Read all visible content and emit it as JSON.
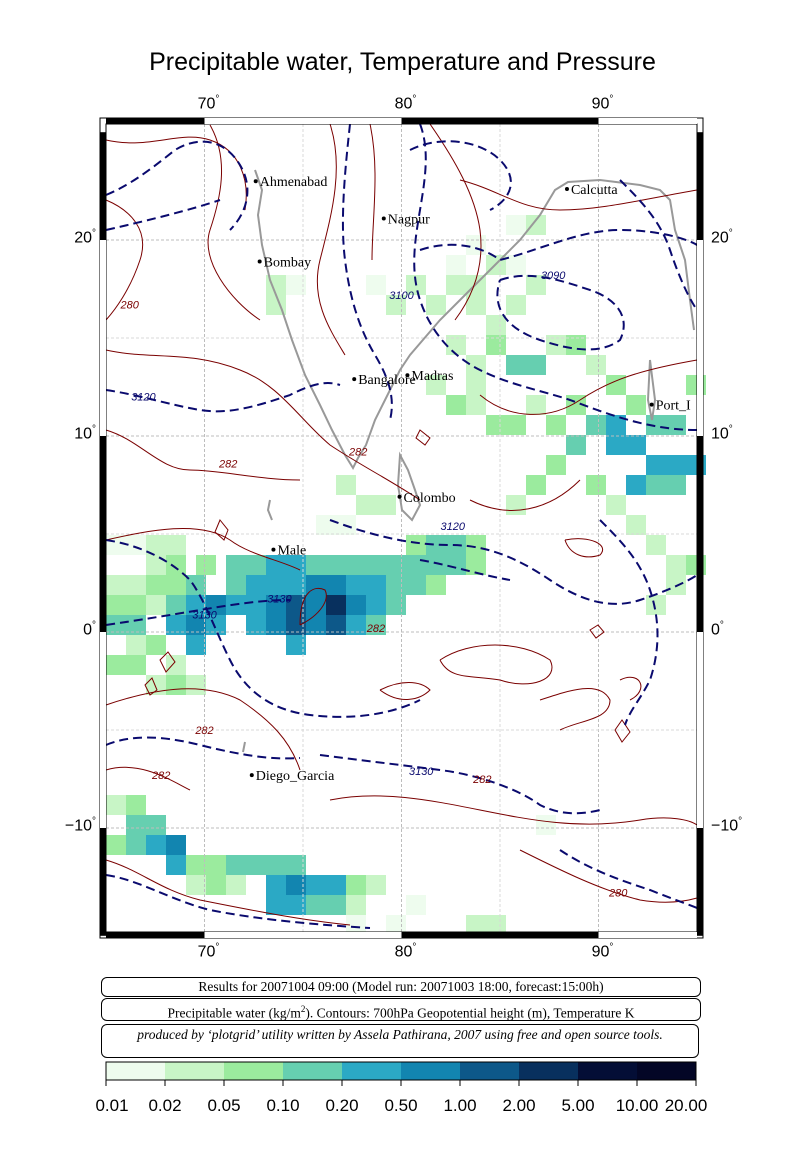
{
  "title": "Precipitable water, Temperature and Pressure",
  "axes": {
    "longitudes": [
      {
        "deg": 70,
        "label": "70"
      },
      {
        "deg": 80,
        "label": "80"
      },
      {
        "deg": 90,
        "label": "90"
      }
    ],
    "latitudes": [
      {
        "deg": 20,
        "label": "20"
      },
      {
        "deg": 10,
        "label": "10"
      },
      {
        "deg": 0,
        "label": "0"
      },
      {
        "deg": -10,
        "label": "−10"
      }
    ],
    "degree_mark": "°"
  },
  "cities": [
    {
      "name": "Ahmenabad",
      "lon": 72.6,
      "lat": 23.0
    },
    {
      "name": "Nagpur",
      "lon": 79.1,
      "lat": 21.1
    },
    {
      "name": "Calcutta",
      "lon": 88.4,
      "lat": 22.6
    },
    {
      "name": "Bombay",
      "lon": 72.8,
      "lat": 18.9
    },
    {
      "name": "Bangalore",
      "lon": 77.6,
      "lat": 12.9
    },
    {
      "name": "Madras",
      "lon": 80.3,
      "lat": 13.1
    },
    {
      "name": "Port_I",
      "lon": 92.7,
      "lat": 11.6
    },
    {
      "name": "Colombo",
      "lon": 79.9,
      "lat": 6.9
    },
    {
      "name": "Male",
      "lon": 73.5,
      "lat": 4.2
    },
    {
      "name": "Diego_Garcia",
      "lon": 72.4,
      "lat": -7.3
    }
  ],
  "contour_labels": [
    {
      "text": "3090",
      "lon": 87.7,
      "lat": 18.0
    },
    {
      "text": "3100",
      "lon": 80.0,
      "lat": 17.0
    },
    {
      "text": "3120",
      "lon": 66.9,
      "lat": 11.8
    },
    {
      "text": "3120",
      "lon": 82.6,
      "lat": 5.2
    },
    {
      "text": "3130",
      "lon": 70.0,
      "lat": 0.7
    },
    {
      "text": "3130",
      "lon": 73.8,
      "lat": 1.5
    },
    {
      "text": "3130",
      "lon": 81.0,
      "lat": -7.3
    },
    {
      "text": "280",
      "lon": 66.2,
      "lat": 16.5
    },
    {
      "text": "280",
      "lon": 91.0,
      "lat": -13.5
    },
    {
      "text": "282",
      "lon": 71.2,
      "lat": 8.4
    },
    {
      "text": "282",
      "lon": 77.8,
      "lat": 9.0
    },
    {
      "text": "282",
      "lon": 78.7,
      "lat": 0.0
    },
    {
      "text": "282",
      "lon": 70.0,
      "lat": -5.2
    },
    {
      "text": "282",
      "lon": 67.8,
      "lat": -7.5
    },
    {
      "text": "282",
      "lon": 84.1,
      "lat": -7.7
    }
  ],
  "info": {
    "line1": "Results for 20071004 09:00 (Model run: 20071003 18:00, forecast:15:00h)",
    "line2_prefix": "Precipitable water (kg/m",
    "line2_sup": "2",
    "line2_suffix": ").  Contours: 700hPa Geopotential height (m), Temperature K",
    "line3": "produced by ‘plotgrid’ utility written by Assela Pathirana, 2007 using free and open source tools."
  },
  "colorbar": {
    "labels": [
      "0.01",
      "0.02",
      "0.05",
      "0.10",
      "0.20",
      "0.50",
      "1.00",
      "2.00",
      "5.00",
      "10.00",
      "20.00"
    ],
    "colors": [
      "#eefcee",
      "#c8f5c6",
      "#9beb9e",
      "#66cfb0",
      "#2ba9c5",
      "#1285b0",
      "#0d5889",
      "#08305e",
      "#040e36",
      "#030626"
    ]
  }
}
